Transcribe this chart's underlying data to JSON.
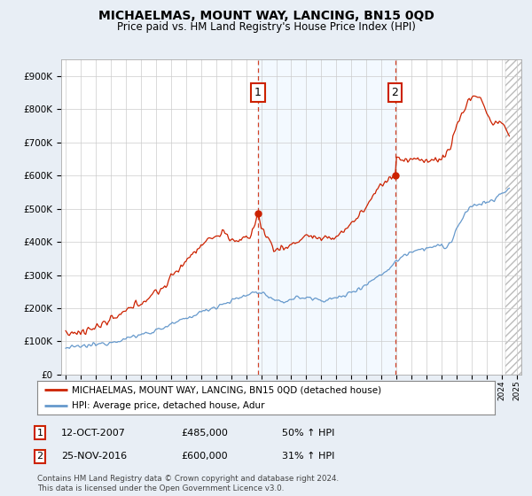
{
  "title": "MICHAELMAS, MOUNT WAY, LANCING, BN15 0QD",
  "subtitle": "Price paid vs. HM Land Registry's House Price Index (HPI)",
  "background_color": "#e8eef5",
  "plot_background": "#ffffff",
  "red_color": "#cc2200",
  "blue_color": "#6699cc",
  "shade_color": "#ddeeff",
  "hatch_color": "#cccccc",
  "ylim": [
    0,
    950000
  ],
  "yticks": [
    0,
    100000,
    200000,
    300000,
    400000,
    500000,
    600000,
    700000,
    800000,
    900000
  ],
  "ytick_labels": [
    "£0",
    "£100K",
    "£200K",
    "£300K",
    "£400K",
    "£500K",
    "£600K",
    "£700K",
    "£800K",
    "£900K"
  ],
  "sale1_year": 2007.79,
  "sale1_price": 485000,
  "sale2_year": 2016.9,
  "sale2_price": 600000,
  "xlim_left": 1994.7,
  "xlim_right": 2025.3,
  "hatch_start": 2024.25,
  "legend1": "MICHAELMAS, MOUNT WAY, LANCING, BN15 0QD (detached house)",
  "legend2": "HPI: Average price, detached house, Adur",
  "annotation1_date": "12-OCT-2007",
  "annotation1_price": "£485,000",
  "annotation1_pct": "50% ↑ HPI",
  "annotation2_date": "25-NOV-2016",
  "annotation2_price": "£600,000",
  "annotation2_pct": "31% ↑ HPI",
  "footer": "Contains HM Land Registry data © Crown copyright and database right 2024.\nThis data is licensed under the Open Government Licence v3.0."
}
